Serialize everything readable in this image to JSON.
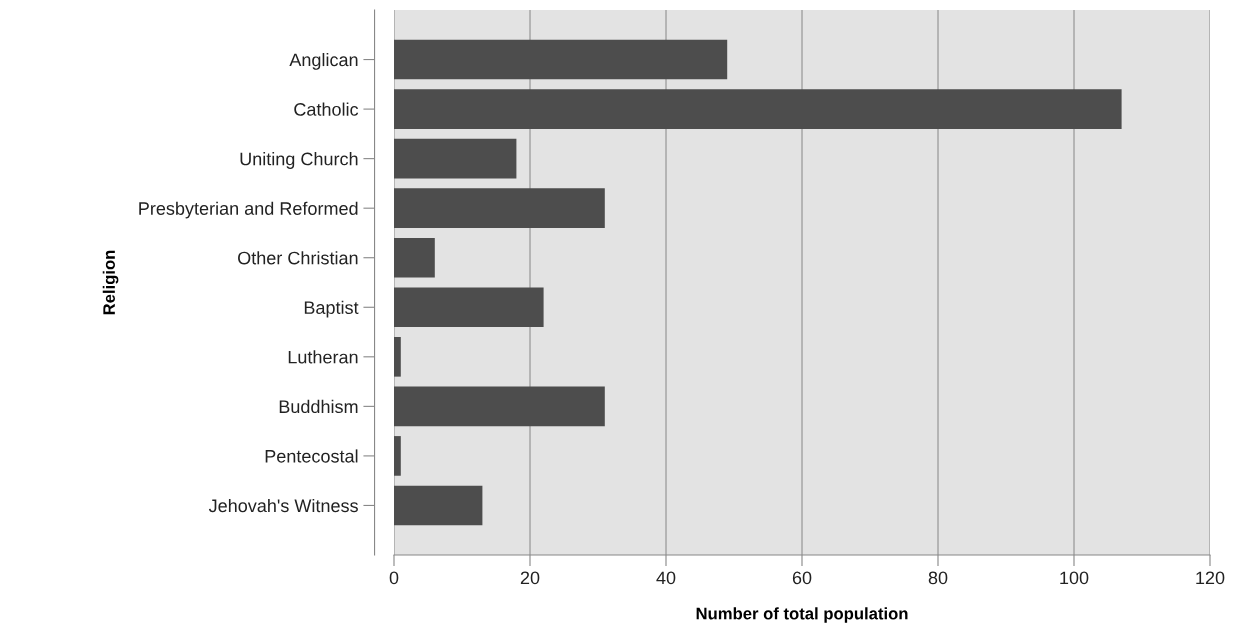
{
  "chart_data": {
    "type": "bar",
    "orientation": "horizontal",
    "xlabel": "Number of total population",
    "ylabel": "Religion",
    "categories": [
      "Anglican",
      "Catholic",
      "Uniting Church",
      "Presbyterian and Reformed",
      "Other Christian",
      "Baptist",
      "Lutheran",
      "Buddhism",
      "Pentecostal",
      "Jehovah's Witness"
    ],
    "values": [
      49,
      107,
      18,
      31,
      6,
      22,
      1,
      31,
      1,
      13
    ],
    "color": "#4d4d4d",
    "xlim": [
      0,
      120
    ],
    "xticks": [
      0,
      20,
      40,
      60,
      80,
      100,
      120
    ],
    "grid": "x",
    "legend": false
  }
}
